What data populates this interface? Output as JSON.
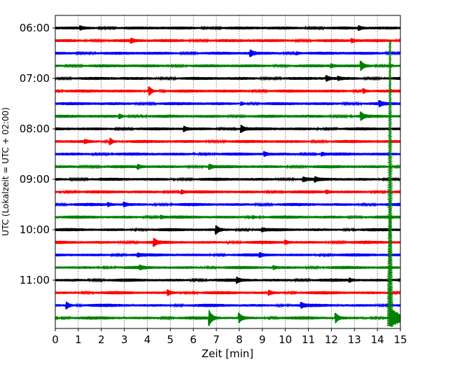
{
  "chart_data": {
    "type": "line",
    "title": "",
    "xlabel": "Zeit  [min]",
    "ylabel": "UTC (Lokalzeit = UTC + 02:00)",
    "xlim": [
      0,
      15
    ],
    "x_ticks": [
      "0",
      "1",
      "2",
      "3",
      "4",
      "5",
      "6",
      "7",
      "8",
      "9",
      "10",
      "11",
      "12",
      "13",
      "14",
      "15"
    ],
    "y_ticks": [
      {
        "label": "06:00",
        "row": 0
      },
      {
        "label": "07:00",
        "row": 4
      },
      {
        "label": "08:00",
        "row": 8
      },
      {
        "label": "09:00",
        "row": 12
      },
      {
        "label": "10:00",
        "row": 16
      },
      {
        "label": "11:00",
        "row": 20
      }
    ],
    "grid": "vertical dotted lines at every minute",
    "trace_colors": [
      "#000000",
      "#ff0000",
      "#0000ff",
      "#008000"
    ],
    "rows": [
      {
        "start": "06:00",
        "events": [
          {
            "t": 1.1,
            "a": 0.3
          },
          {
            "t": 13.2,
            "a": 0.4
          }
        ]
      },
      {
        "start": "06:15",
        "events": [
          {
            "t": 3.3,
            "a": 0.4
          },
          {
            "t": 12.9,
            "a": 0.3
          }
        ]
      },
      {
        "start": "06:30",
        "events": [
          {
            "t": 8.5,
            "a": 0.6
          },
          {
            "t": 10.5,
            "a": 0.3
          }
        ]
      },
      {
        "start": "06:45",
        "events": [
          {
            "t": 13.3,
            "a": 0.9
          },
          {
            "t": 12.0,
            "a": 0.3
          }
        ]
      },
      {
        "start": "07:00",
        "events": [
          {
            "t": 11.8,
            "a": 0.5
          },
          {
            "t": 12.3,
            "a": 0.3
          }
        ]
      },
      {
        "start": "07:15",
        "events": [
          {
            "t": 4.1,
            "a": 0.9
          },
          {
            "t": 13.4,
            "a": 0.5
          }
        ]
      },
      {
        "start": "07:30",
        "events": [
          {
            "t": 8.1,
            "a": 0.3
          },
          {
            "t": 14.1,
            "a": 0.5
          }
        ]
      },
      {
        "start": "07:45",
        "events": [
          {
            "t": 2.8,
            "a": 0.4
          },
          {
            "t": 13.3,
            "a": 0.8
          }
        ]
      },
      {
        "start": "08:00",
        "events": [
          {
            "t": 5.6,
            "a": 0.5
          },
          {
            "t": 8.1,
            "a": 0.7
          }
        ]
      },
      {
        "start": "08:15",
        "events": [
          {
            "t": 2.4,
            "a": 0.7
          },
          {
            "t": 1.3,
            "a": 0.3
          }
        ]
      },
      {
        "start": "08:30",
        "events": [
          {
            "t": 9.1,
            "a": 0.4
          },
          {
            "t": 11.6,
            "a": 0.3
          }
        ]
      },
      {
        "start": "08:45",
        "events": [
          {
            "t": 3.6,
            "a": 0.4
          },
          {
            "t": 6.7,
            "a": 0.5
          }
        ]
      },
      {
        "start": "09:00",
        "events": [
          {
            "t": 10.8,
            "a": 0.4
          },
          {
            "t": 11.3,
            "a": 0.4
          }
        ]
      },
      {
        "start": "09:15",
        "events": [
          {
            "t": 5.5,
            "a": 0.4
          },
          {
            "t": 11.8,
            "a": 0.3
          }
        ]
      },
      {
        "start": "09:30",
        "events": [
          {
            "t": 2.3,
            "a": 0.3
          },
          {
            "t": 3.0,
            "a": 0.4
          }
        ]
      },
      {
        "start": "09:45",
        "events": [
          {
            "t": 4.6,
            "a": 0.3
          },
          {
            "t": 8.6,
            "a": 0.3
          }
        ]
      },
      {
        "start": "10:00",
        "events": [
          {
            "t": 7.0,
            "a": 0.8
          },
          {
            "t": 9.0,
            "a": 0.3
          }
        ]
      },
      {
        "start": "10:15",
        "events": [
          {
            "t": 4.3,
            "a": 0.7
          },
          {
            "t": 10.0,
            "a": 0.4
          }
        ]
      },
      {
        "start": "10:30",
        "events": [
          {
            "t": 3.6,
            "a": 0.3
          },
          {
            "t": 8.9,
            "a": 0.3
          }
        ]
      },
      {
        "start": "10:45",
        "events": [
          {
            "t": 3.7,
            "a": 0.3
          },
          {
            "t": 9.5,
            "a": 0.3
          }
        ]
      },
      {
        "start": "11:00",
        "events": [
          {
            "t": 7.9,
            "a": 0.5
          },
          {
            "t": 12.8,
            "a": 0.3
          }
        ]
      },
      {
        "start": "11:15",
        "events": [
          {
            "t": 4.9,
            "a": 0.5
          },
          {
            "t": 9.3,
            "a": 0.4
          }
        ]
      },
      {
        "start": "11:30",
        "events": [
          {
            "t": 0.5,
            "a": 0.7
          },
          {
            "t": 10.7,
            "a": 0.5
          }
        ]
      },
      {
        "start": "11:45",
        "events": [
          {
            "t": 6.7,
            "a": 1.6
          },
          {
            "t": 8.0,
            "a": 1.0
          },
          {
            "t": 12.2,
            "a": 1.0
          }
        ]
      }
    ],
    "quake": {
      "t": 14.55,
      "end_t": 15.0,
      "color": "#008000"
    }
  }
}
